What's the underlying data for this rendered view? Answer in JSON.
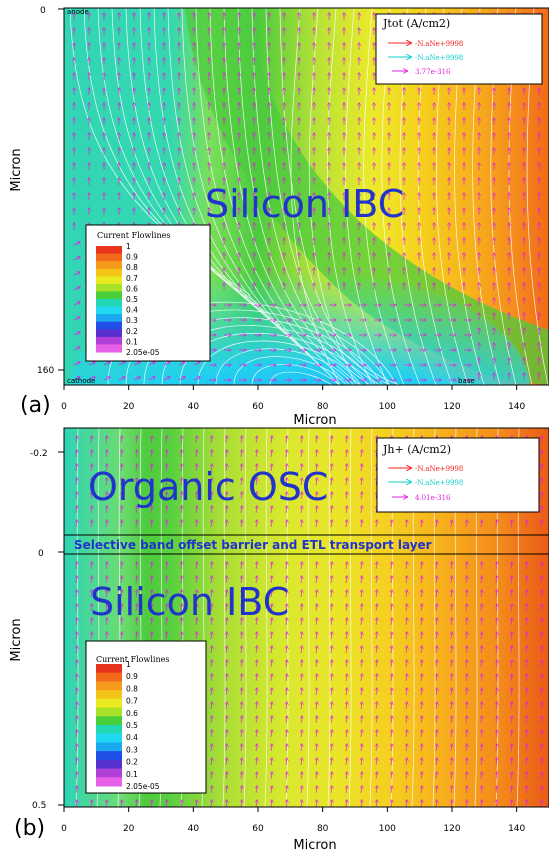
{
  "panel_a": {
    "label": "(a)",
    "big_text": "Silicon IBC",
    "electrode_labels": {
      "top_left": "anode",
      "bottom_left": "cathode",
      "bottom_right": "base"
    },
    "vector_legend": {
      "title": "Jtot (A/cm2)",
      "entries": [
        {
          "label": "-N.aNe+9998",
          "color": "#ff2020"
        },
        {
          "label": "-N.aNe+9998",
          "color": "#10d0d0"
        },
        {
          "label": "3.77e-316",
          "color": "#e020e0"
        }
      ]
    },
    "colorbar": {
      "title": "Current Flowlines",
      "levels": [
        "1",
        "0.9",
        "0.8",
        "0.7",
        "0.6",
        "0.5",
        "0.4",
        "0.3",
        "0.2",
        "0.1",
        "2.05e-05"
      ],
      "colors": [
        "#e8341c",
        "#f26a1a",
        "#f59a1c",
        "#f5c418",
        "#eaea20",
        "#a8e02a",
        "#48cf3a",
        "#22d8b4",
        "#20d8f0",
        "#1aa8f0",
        "#1e50e8",
        "#5830d0",
        "#b040d8",
        "#e860e8"
      ]
    }
  },
  "panel_b": {
    "label": "(b)",
    "big_text_top": "Organic OSC",
    "barrier_text": "Selective band offset barrier and ETL transport layer",
    "big_text_bottom": "Silicon IBC",
    "vector_legend": {
      "title": "Jh+ (A/cm2)",
      "entries": [
        {
          "label": "-N.aNe+9998",
          "color": "#ff2020"
        },
        {
          "label": "-N.aNe+9998",
          "color": "#10d0d0"
        },
        {
          "label": "4.01e-316",
          "color": "#e020e0"
        }
      ]
    },
    "colorbar": {
      "title": "Current Flowlines",
      "levels": [
        "1",
        "0.9",
        "0.8",
        "0.7",
        "0.6",
        "0.5",
        "0.4",
        "0.3",
        "0.2",
        "0.1",
        "2.05e-05"
      ]
    }
  },
  "chart_data": [
    {
      "type": "heatmap",
      "title": "",
      "xlabel": "Micron",
      "ylabel": "Micron",
      "x_ticks": [
        0,
        20,
        40,
        60,
        80,
        100,
        120,
        140
      ],
      "y_ticks": [
        0,
        160
      ],
      "xlim": [
        0,
        150
      ],
      "ylim": [
        160,
        0
      ],
      "field": "Current Flowlines",
      "value_range": [
        2.05e-05,
        1
      ],
      "annotations": [
        "Silicon IBC",
        "anode",
        "cathode",
        "base"
      ]
    },
    {
      "type": "heatmap",
      "title": "",
      "xlabel": "Micron",
      "ylabel": "Micron",
      "x_ticks": [
        0,
        20,
        40,
        60,
        80,
        100,
        120,
        140
      ],
      "y_ticks": [
        -0.2,
        0,
        0.5
      ],
      "xlim": [
        0,
        150
      ],
      "ylim": [
        0.5,
        -0.25
      ],
      "field": "Current Flowlines",
      "value_range": [
        2.05e-05,
        1
      ],
      "annotations": [
        "Organic OSC",
        "Selective band offset barrier and ETL transport layer",
        "Silicon IBC"
      ]
    }
  ]
}
